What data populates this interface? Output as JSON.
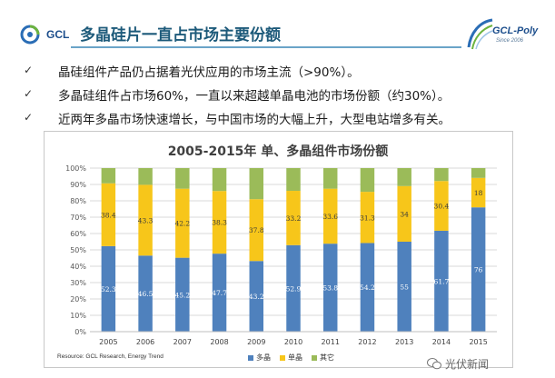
{
  "header": {
    "logo_left_text": "GCL",
    "title": "多晶硅片一直占市场主要份额",
    "logo_right_name": "GCL-Poly",
    "logo_right_since": "Since 2006"
  },
  "bullets": [
    {
      "icon": "check-icon",
      "text": "晶硅组件产品仍占据着光伏应用的市场主流（>90%）。"
    },
    {
      "icon": "check-icon",
      "text": "多晶硅组件占市场60%，一直以来超越单晶电池的市场份额（约30%）。"
    },
    {
      "icon": "check-icon",
      "text": "近两年多晶市场快速增长，与中国市场的大幅上升，大型电站增多有关。"
    }
  ],
  "chart_data": {
    "type": "bar",
    "stacked": true,
    "title": "2005-2015年 单、多晶组件市场份额",
    "categories": [
      "2005",
      "2006",
      "2007",
      "2008",
      "2009",
      "2010",
      "2011",
      "2012",
      "2013",
      "2014",
      "2015"
    ],
    "series": [
      {
        "name": "多晶",
        "color": "#4f81bd",
        "values": [
          52.3,
          46.5,
          45.2,
          47.7,
          43.2,
          52.9,
          53.8,
          54.2,
          55,
          61.7,
          76
        ]
      },
      {
        "name": "单晶",
        "color": "#f7c61a",
        "values": [
          38.4,
          43.3,
          42.2,
          38.3,
          37.8,
          33.2,
          33.6,
          31.3,
          34,
          30.4,
          18
        ]
      },
      {
        "name": "其它",
        "color": "#9bbb59",
        "values": [
          9.3,
          10.2,
          12.6,
          14,
          19,
          13.9,
          12.6,
          14.5,
          11,
          7.9,
          6
        ]
      }
    ],
    "ytick_labels": [
      "0%",
      "10%",
      "20%",
      "30%",
      "40%",
      "50%",
      "60%",
      "70%",
      "80%",
      "90%",
      "100%"
    ],
    "ylim": [
      0,
      100
    ],
    "grid": true,
    "legend": "bottom",
    "source": "Resource: GCL Research, Energy Trend"
  },
  "watermark": {
    "icon": "wechat-icon",
    "text": "光伏新闻"
  }
}
